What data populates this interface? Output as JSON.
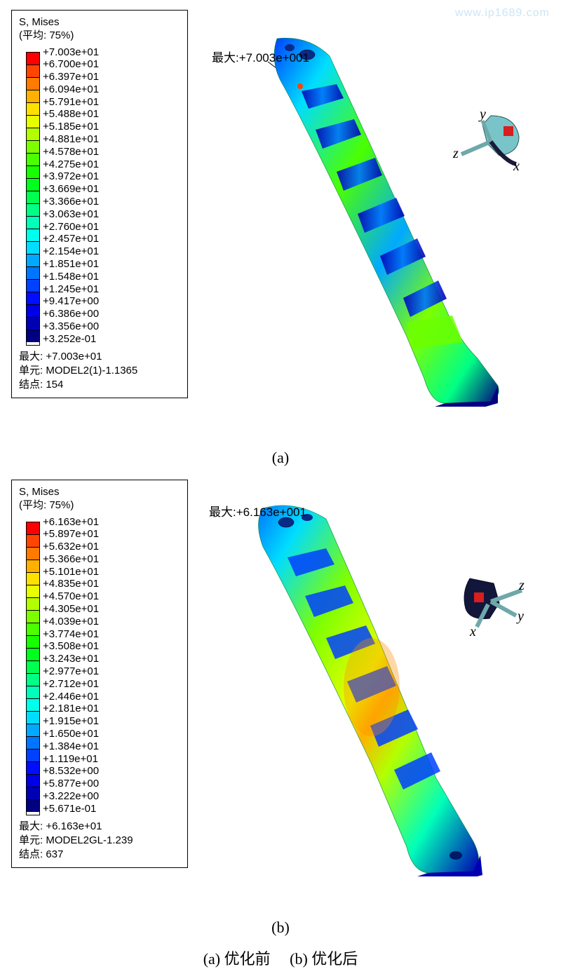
{
  "watermark": "www.ip1689.com",
  "panel_a": {
    "legend": {
      "title": "S, Mises",
      "subtitle": "(平均: 75%)",
      "colors": [
        "#ff0000",
        "#ff4500",
        "#ff7b00",
        "#ffb000",
        "#ffe100",
        "#e7ff00",
        "#b3ff00",
        "#7eff00",
        "#4bff00",
        "#17ff00",
        "#00ff1d",
        "#00ff51",
        "#00ff85",
        "#00ffb9",
        "#00ffed",
        "#00ddff",
        "#00a9ff",
        "#0075ff",
        "#0041ff",
        "#000dff",
        "#0000e6",
        "#0000b3",
        "#000080"
      ],
      "values": [
        "+7.003e+01",
        "+6.700e+01",
        "+6.397e+01",
        "+6.094e+01",
        "+5.791e+01",
        "+5.488e+01",
        "+5.185e+01",
        "+4.881e+01",
        "+4.578e+01",
        "+4.275e+01",
        "+3.972e+01",
        "+3.669e+01",
        "+3.366e+01",
        "+3.063e+01",
        "+2.760e+01",
        "+2.457e+01",
        "+2.154e+01",
        "+1.851e+01",
        "+1.548e+01",
        "+1.245e+01",
        "+9.417e+00",
        "+6.386e+00",
        "+3.356e+00",
        "+3.252e-01"
      ],
      "footer_max": "最大: +7.003e+01",
      "footer_elem": "单元: MODEL2(1)-1.1365",
      "footer_node": "结点: 154"
    },
    "callout_text": "最大:+7.003e+001",
    "triad": {
      "x": "x",
      "y": "y",
      "z": "z"
    }
  },
  "panel_b": {
    "legend": {
      "title": "S, Mises",
      "subtitle": "(平均: 75%)",
      "colors": [
        "#ff0000",
        "#ff4500",
        "#ff7b00",
        "#ffb000",
        "#ffe100",
        "#e7ff00",
        "#b3ff00",
        "#7eff00",
        "#4bff00",
        "#17ff00",
        "#00ff1d",
        "#00ff51",
        "#00ff85",
        "#00ffb9",
        "#00ffed",
        "#00ddff",
        "#00a9ff",
        "#0075ff",
        "#0041ff",
        "#000dff",
        "#0000e6",
        "#0000b3",
        "#000080"
      ],
      "values": [
        "+6.163e+01",
        "+5.897e+01",
        "+5.632e+01",
        "+5.366e+01",
        "+5.101e+01",
        "+4.835e+01",
        "+4.570e+01",
        "+4.305e+01",
        "+4.039e+01",
        "+3.774e+01",
        "+3.508e+01",
        "+3.243e+01",
        "+2.977e+01",
        "+2.712e+01",
        "+2.446e+01",
        "+2.181e+01",
        "+1.915e+01",
        "+1.650e+01",
        "+1.384e+01",
        "+1.119e+01",
        "+8.532e+00",
        "+5.877e+00",
        "+3.222e+00",
        "+5.671e-01"
      ],
      "footer_max": "最大: +6.163e+01",
      "footer_elem": "单元: MODEL2GL-1.239",
      "footer_node": "结点: 637"
    },
    "callout_text": "最大:+6.163e+001",
    "triad": {
      "x": "x",
      "y": "y",
      "z": "z"
    }
  },
  "label_a": "(a)",
  "label_b": "(b)",
  "caption": "(a) 优化前 　(b) 优化后"
}
